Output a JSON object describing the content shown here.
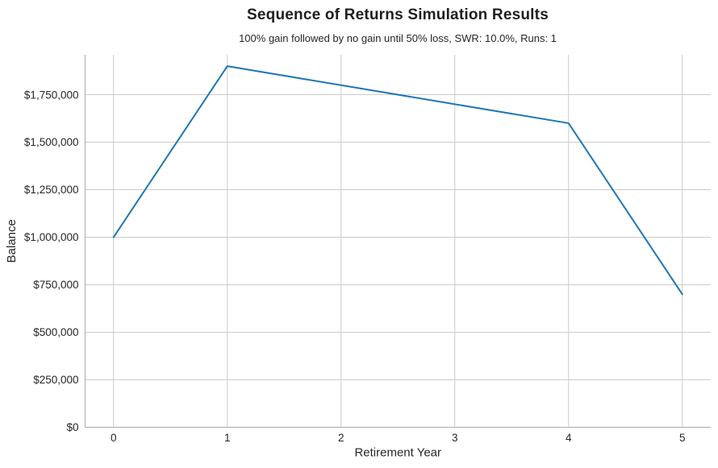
{
  "chart_data": {
    "type": "line",
    "title": "Sequence of Returns Simulation Results",
    "subtitle": "100% gain followed by no gain until 50% loss, SWR: 10.0%, Runs: 1",
    "xlabel": "Retirement Year",
    "ylabel": "Balance",
    "x": [
      0,
      1,
      2,
      3,
      4,
      5
    ],
    "series": [
      {
        "name": "simulation-run-1",
        "values": [
          1000000,
          1900000,
          1800000,
          1700000,
          1600000,
          700000
        ]
      }
    ],
    "xlim": [
      -0.25,
      5.25
    ],
    "ylim": [
      0,
      1960000
    ],
    "xticks": {
      "values": [
        0,
        1,
        2,
        3,
        4,
        5
      ],
      "labels": [
        "0",
        "1",
        "2",
        "3",
        "4",
        "5"
      ]
    },
    "yticks": {
      "values": [
        0,
        250000,
        500000,
        750000,
        1000000,
        1250000,
        1500000,
        1750000
      ],
      "labels": [
        "$0",
        "$250,000",
        "$500,000",
        "$750,000",
        "$1,000,000",
        "$1,250,000",
        "$1,500,000",
        "$1,750,000"
      ]
    },
    "grid": true,
    "legend": "none",
    "colors": {
      "line": "#1f77b4",
      "grid": "#cccccc",
      "spine": "#b4b4b4",
      "text": "#262626",
      "background": "#ffffff"
    }
  }
}
